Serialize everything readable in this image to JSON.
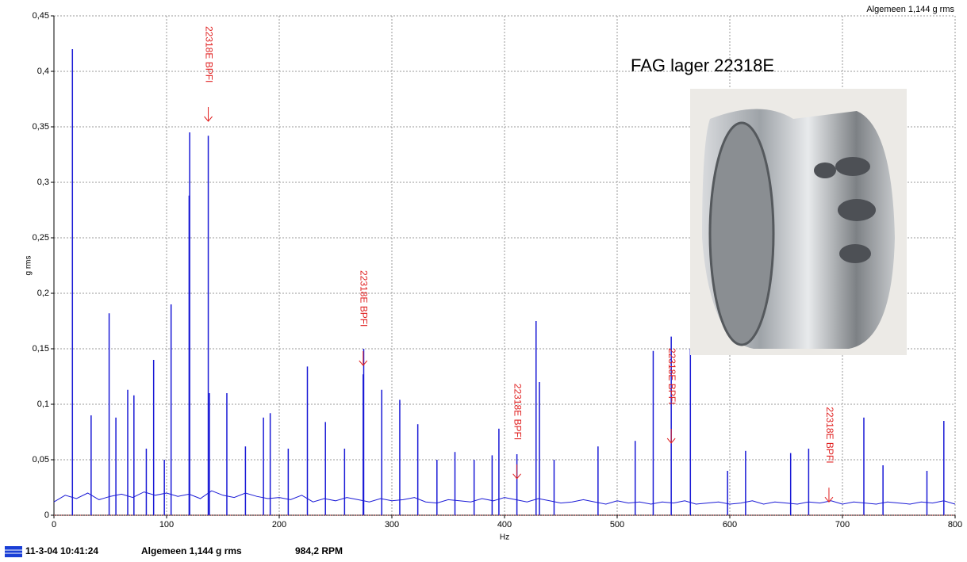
{
  "chart_data": {
    "type": "spectrum",
    "y_label": "g rms",
    "x_label": "Hz",
    "overall": "Algemeen 1,144 g rms",
    "xlim": [
      0,
      800
    ],
    "xticks": [
      0,
      100,
      200,
      300,
      400,
      500,
      600,
      700,
      800
    ],
    "ylim": [
      0,
      0.45
    ],
    "yticks": [
      0,
      {
        "value": 0.05,
        "label": "0,05"
      },
      {
        "value": 0.1,
        "label": "0,1"
      },
      {
        "value": 0.15,
        "label": "0,15"
      },
      {
        "value": 0.2,
        "label": "0,2"
      },
      {
        "value": 0.25,
        "label": "0,25"
      },
      {
        "value": 0.3,
        "label": "0,3"
      },
      {
        "value": 0.35,
        "label": "0,35"
      },
      {
        "value": 0.4,
        "label": "0,4"
      },
      {
        "value": 0.45,
        "label": "0,45"
      }
    ],
    "grid": true,
    "series": [
      {
        "style": "line",
        "color": "#1a1ad6",
        "x": [
          0,
          10,
          20,
          30,
          40,
          50,
          60,
          70,
          80,
          90,
          100,
          110,
          120,
          130,
          140,
          150,
          160,
          170,
          180,
          190,
          200,
          210,
          220,
          230,
          240,
          250,
          260,
          270,
          280,
          290,
          300,
          310,
          320,
          330,
          340,
          350,
          360,
          370,
          380,
          390,
          400,
          410,
          420,
          430,
          440,
          450,
          460,
          470,
          480,
          490,
          500,
          510,
          520,
          530,
          540,
          550,
          560,
          570,
          580,
          590,
          600,
          610,
          620,
          630,
          640,
          650,
          660,
          670,
          680,
          690,
          700,
          710,
          720,
          730,
          740,
          750,
          760,
          770,
          780,
          790,
          800
        ],
        "values": [
          0.012,
          0.018,
          0.015,
          0.02,
          0.014,
          0.017,
          0.019,
          0.016,
          0.021,
          0.018,
          0.02,
          0.017,
          0.019,
          0.015,
          0.022,
          0.018,
          0.016,
          0.02,
          0.017,
          0.015,
          0.016,
          0.014,
          0.018,
          0.012,
          0.015,
          0.013,
          0.016,
          0.014,
          0.012,
          0.015,
          0.013,
          0.014,
          0.016,
          0.012,
          0.011,
          0.014,
          0.013,
          0.012,
          0.015,
          0.013,
          0.016,
          0.014,
          0.012,
          0.015,
          0.013,
          0.011,
          0.012,
          0.014,
          0.012,
          0.01,
          0.013,
          0.011,
          0.012,
          0.01,
          0.012,
          0.011,
          0.013,
          0.01,
          0.011,
          0.012,
          0.01,
          0.011,
          0.013,
          0.01,
          0.012,
          0.011,
          0.01,
          0.012,
          0.011,
          0.013,
          0.01,
          0.012,
          0.011,
          0.01,
          0.012,
          0.011,
          0.01,
          0.012,
          0.011,
          0.013,
          0.01
        ]
      },
      {
        "style": "stem",
        "color": "#1a1ad6",
        "x": [
          16.4,
          33,
          49,
          55,
          65.5,
          71,
          82,
          88.5,
          98,
          104,
          120,
          120.5,
          137,
          138,
          153.5,
          170,
          186,
          192,
          208,
          225,
          241,
          258,
          274.5,
          275,
          291,
          307,
          323,
          340,
          356,
          373,
          389,
          395,
          411,
          428,
          431,
          444,
          483,
          516,
          532,
          548,
          565,
          598,
          614,
          654,
          670,
          719,
          736,
          775,
          790
        ],
        "values": [
          0.42,
          0.09,
          0.182,
          0.088,
          0.113,
          0.108,
          0.06,
          0.14,
          0.05,
          0.19,
          0.288,
          0.345,
          0.342,
          0.11,
          0.11,
          0.062,
          0.088,
          0.092,
          0.06,
          0.134,
          0.084,
          0.06,
          0.127,
          0.15,
          0.113,
          0.104,
          0.082,
          0.05,
          0.057,
          0.05,
          0.054,
          0.078,
          0.055,
          0.175,
          0.12,
          0.05,
          0.062,
          0.067,
          0.148,
          0.161,
          0.15,
          0.04,
          0.058,
          0.056,
          0.06,
          0.088,
          0.045,
          0.04,
          0.085
        ]
      }
    ],
    "annotations": [
      {
        "x": 137,
        "y": 0.355,
        "text": "22318E BPFI"
      },
      {
        "x": 274.5,
        "y": 0.135,
        "text": "22318E BPFI"
      },
      {
        "x": 411,
        "y": 0.033,
        "text": "22318E BPFI"
      },
      {
        "x": 548,
        "y": 0.065,
        "text": "22318E BPFI"
      },
      {
        "x": 688,
        "y": 0.012,
        "text": "22318E BPFI"
      }
    ]
  },
  "photo_caption": "FAG lager 22318E",
  "status_bar": {
    "timestamp": "11-3-04 10:41:24",
    "overall": "Algemeen 1,144 g rms",
    "speed": "984,2 RPM"
  }
}
